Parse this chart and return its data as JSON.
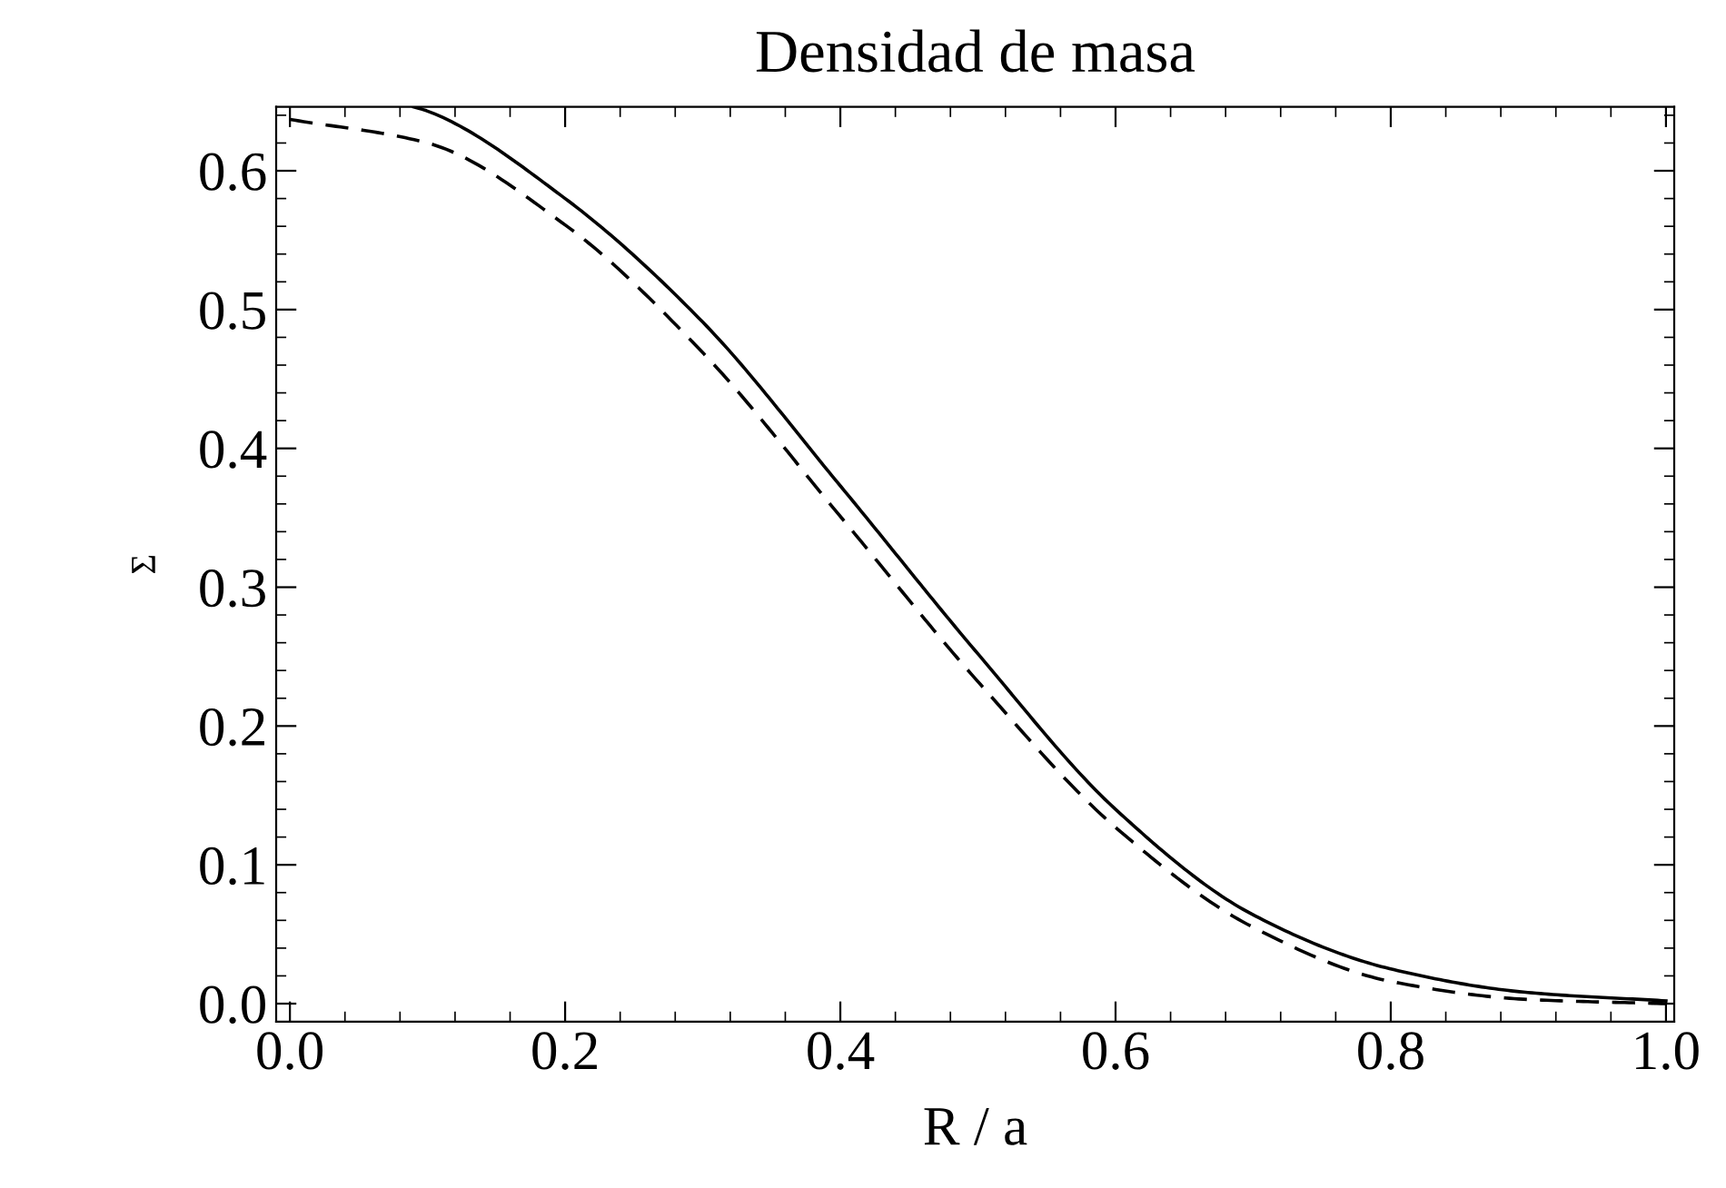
{
  "chart_data": {
    "type": "line",
    "title": "Densidad de masa",
    "xlabel": "R / a",
    "ylabel": "Σ",
    "xlim": [
      -0.01,
      1.006
    ],
    "ylim": [
      -0.013,
      0.646
    ],
    "xticks": [
      {
        "value": 0,
        "label": "0.0"
      },
      0.2,
      0.4,
      0.6,
      0.8,
      {
        "value": 1,
        "label": "1.0"
      }
    ],
    "yticks": [
      {
        "value": 0,
        "label": "0.0"
      },
      0.1,
      0.2,
      0.3,
      0.4,
      0.5,
      0.6
    ],
    "grid": false,
    "legend": false,
    "marker": "none",
    "series": [
      {
        "color": "#000000",
        "line_style": "solid",
        "x": [
          0.09,
          0.1,
          0.2,
          0.3,
          0.4,
          0.5,
          0.6,
          0.7,
          0.8,
          0.9,
          1.0
        ],
        "values": [
          0.646,
          0.643,
          0.58,
          0.491,
          0.373,
          0.252,
          0.14,
          0.064,
          0.025,
          0.008,
          0.002
        ]
      },
      {
        "color": "#000000",
        "line_style": "dashed",
        "x": [
          0,
          0.1,
          0.2,
          0.3,
          0.4,
          0.5,
          0.6,
          0.7,
          0.8,
          0.9,
          1.0
        ],
        "values": [
          0.637,
          0.62,
          0.561,
          0.469,
          0.351,
          0.232,
          0.127,
          0.055,
          0.016,
          0.003,
          0
        ]
      }
    ]
  }
}
